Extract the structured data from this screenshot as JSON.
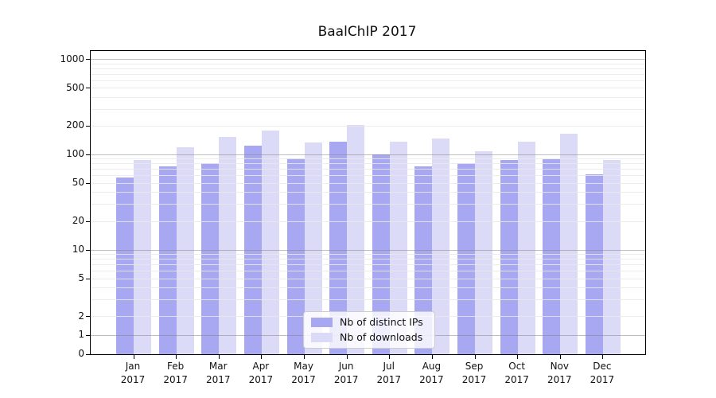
{
  "chart_data": {
    "type": "bar",
    "title": "BaalChIP 2017",
    "categories": [
      {
        "month": "Jan",
        "year": "2017"
      },
      {
        "month": "Feb",
        "year": "2017"
      },
      {
        "month": "Mar",
        "year": "2017"
      },
      {
        "month": "Apr",
        "year": "2017"
      },
      {
        "month": "May",
        "year": "2017"
      },
      {
        "month": "Jun",
        "year": "2017"
      },
      {
        "month": "Jul",
        "year": "2017"
      },
      {
        "month": "Aug",
        "year": "2017"
      },
      {
        "month": "Sep",
        "year": "2017"
      },
      {
        "month": "Oct",
        "year": "2017"
      },
      {
        "month": "Nov",
        "year": "2017"
      },
      {
        "month": "Dec",
        "year": "2017"
      }
    ],
    "series": [
      {
        "name": "Nb of distinct IPs",
        "color": "#a8a8f2",
        "values": [
          58,
          75,
          81,
          125,
          92,
          136,
          101,
          75,
          81,
          88,
          89,
          62
        ]
      },
      {
        "name": "Nb of downloads",
        "color": "#dbdbf8",
        "values": [
          88,
          120,
          154,
          180,
          134,
          205,
          138,
          147,
          108,
          136,
          166,
          88
        ]
      }
    ],
    "y_axis": {
      "scale": "symlog",
      "linthresh": 2,
      "ticks": [
        0,
        1,
        2,
        5,
        10,
        20,
        50,
        100,
        200,
        500,
        1000
      ],
      "range": [
        0,
        1200
      ],
      "major_gridlines": [
        1,
        10,
        100,
        1000
      ]
    },
    "x_axis": {
      "label_format": "month over year"
    },
    "legend_position": "lower center",
    "grid": "major and minor horizontal, drawn above bars"
  }
}
